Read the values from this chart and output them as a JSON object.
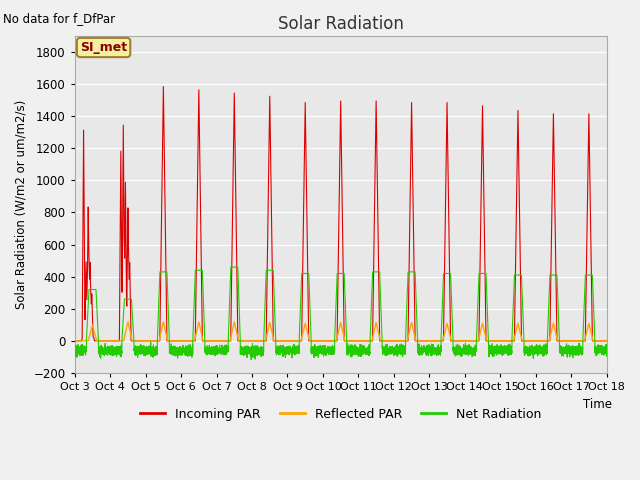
{
  "title": "Solar Radiation",
  "subtitle": "No data for f_DfPar",
  "ylabel": "Solar Radiation (W/m2 or um/m2/s)",
  "xlabel": "Time",
  "ylim": [
    -200,
    1900
  ],
  "yticks": [
    -200,
    0,
    200,
    400,
    600,
    800,
    1000,
    1200,
    1400,
    1600,
    1800
  ],
  "fig_bg_color": "#f0f0f0",
  "plot_bg_color": "#e8e8e8",
  "legend_box_label": "SI_met",
  "legend_box_color": "#f5f0a0",
  "legend_box_border": "#a08030",
  "incoming_color": "#dd0000",
  "reflected_color": "#ffa500",
  "net_color": "#22cc00",
  "x_start": 3,
  "x_end": 18,
  "x_ticks": [
    3,
    4,
    5,
    6,
    7,
    8,
    9,
    10,
    11,
    12,
    13,
    14,
    15,
    16,
    17,
    18
  ],
  "x_tick_labels": [
    "Oct 3",
    "Oct 4",
    "Oct 5",
    "Oct 6",
    "Oct 7",
    "Oct 8",
    "Oct 9",
    "Oct 10",
    "Oct 11",
    "Oct 12",
    "Oct 13",
    "Oct 14",
    "Oct 15",
    "Oct 16",
    "Oct 17",
    "Oct 18"
  ],
  "incoming_peaks": [
    1330,
    1370,
    1600,
    1580,
    1560,
    1540,
    1500,
    1510,
    1510,
    1500,
    1500,
    1480,
    1450,
    1430,
    1430
  ],
  "net_peaks": [
    320,
    260,
    430,
    440,
    460,
    440,
    420,
    420,
    430,
    430,
    420,
    420,
    410,
    410,
    410
  ],
  "reflected_peaks": [
    100,
    120,
    120,
    120,
    120,
    115,
    110,
    115,
    115,
    115,
    110,
    110,
    110,
    110,
    110
  ]
}
